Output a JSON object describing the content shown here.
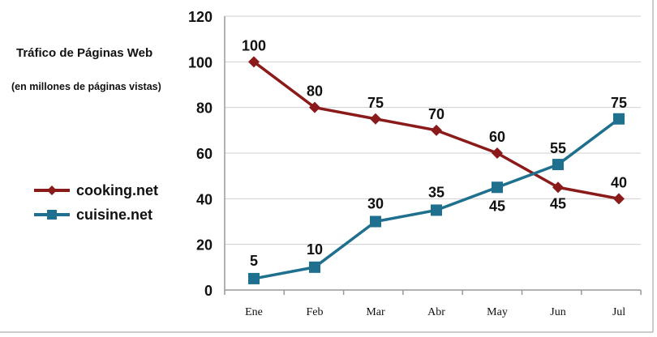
{
  "chart_data": {
    "type": "line",
    "title": "Tráfico de Páginas Web",
    "subtitle": "(en millones de páginas vistas)",
    "categories": [
      "Ene",
      "Feb",
      "Mar",
      "Abr",
      "May",
      "Jun",
      "Jul"
    ],
    "ylim": [
      0,
      120
    ],
    "yticks": [
      "0",
      "20",
      "40",
      "60",
      "80",
      "100",
      "120"
    ],
    "grid": true,
    "legend_position": "left",
    "series": [
      {
        "name": "cooking.net",
        "values": [
          100,
          80,
          75,
          70,
          60,
          45,
          40
        ],
        "color": "#8b1a1a",
        "marker": "diamond"
      },
      {
        "name": "cuisine.net",
        "values": [
          5,
          10,
          30,
          35,
          45,
          55,
          75
        ],
        "color": "#1f6f8f",
        "marker": "square"
      }
    ]
  }
}
